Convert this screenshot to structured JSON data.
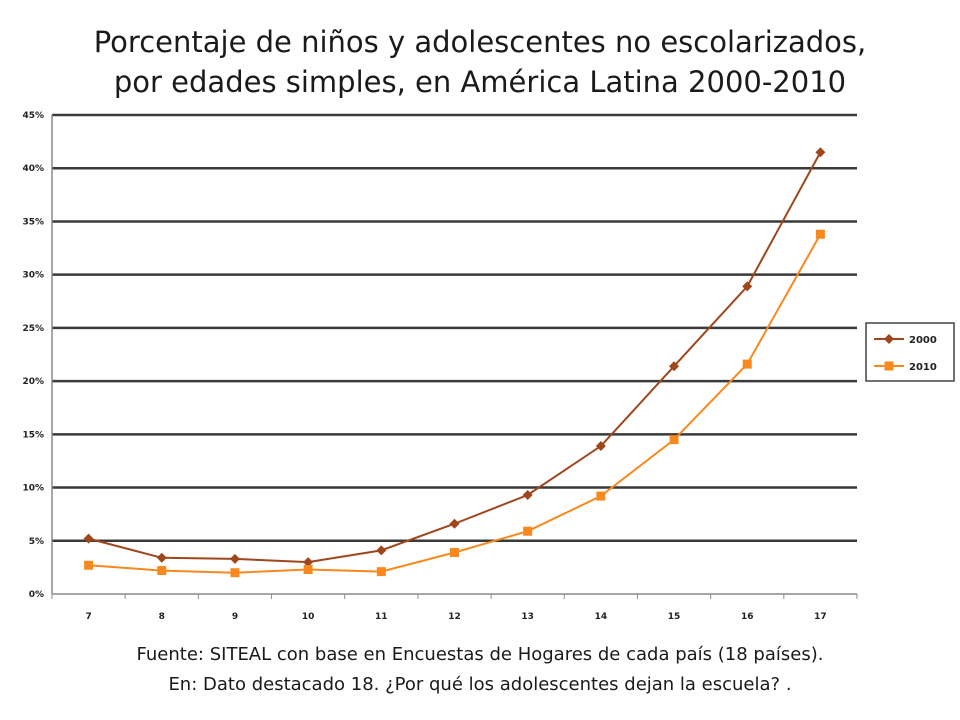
{
  "title": {
    "line1": "Porcentaje de niños y adolescentes no escolarizados,",
    "line2": "por edades simples, en América Latina 2000-2010"
  },
  "source": {
    "line1": "Fuente: SITEAL con base en Encuestas de Hogares de cada país (18 países).",
    "line2": "En: Dato destacado 18. ¿Por qué los adolescentes dejan la escuela? ."
  },
  "chart_data": {
    "type": "line",
    "x": [
      7,
      8,
      9,
      10,
      11,
      12,
      13,
      14,
      15,
      16,
      17
    ],
    "series": [
      {
        "name": "2000",
        "values": [
          5.2,
          3.4,
          3.3,
          3.0,
          4.1,
          6.6,
          9.3,
          13.9,
          21.4,
          28.9,
          41.5
        ],
        "color": "#a0461c",
        "marker": "diamond"
      },
      {
        "name": "2010",
        "values": [
          2.7,
          2.2,
          2.0,
          2.3,
          2.1,
          3.9,
          5.9,
          9.2,
          14.5,
          21.6,
          33.8
        ],
        "color": "#f7891e",
        "marker": "square"
      }
    ],
    "ylim": [
      0,
      45
    ],
    "yticks": [
      "0%",
      "5%",
      "10%",
      "15%",
      "20%",
      "25%",
      "30%",
      "35%",
      "40%",
      "45%"
    ],
    "grid": true,
    "legend": "right"
  }
}
